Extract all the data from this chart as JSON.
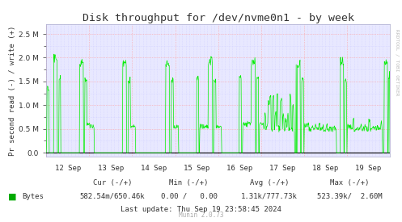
{
  "title": "Disk throughput for /dev/nvme0n1 - by week",
  "ylabel": "Pr second read (-) / write (+)",
  "bg_color": "#FFFFFF",
  "plot_bg_color": "#E8E8FF",
  "grid_color_major": "#FF9999",
  "grid_color_minor": "#CCCCFF",
  "line_color": "#00EE00",
  "zero_line_color": "#000000",
  "yticks": [
    0.0,
    0.5,
    1.0,
    1.5,
    2.0,
    2.5
  ],
  "ylim_min": -80000,
  "ylim_max": 2700000,
  "xticklabels": [
    "12 Sep",
    "13 Sep",
    "14 Sep",
    "15 Sep",
    "16 Sep",
    "17 Sep",
    "18 Sep",
    "19 Sep"
  ],
  "legend_label": "Bytes",
  "legend_color": "#00AA00",
  "cur_label": "Cur (-/+)",
  "cur_val": "582.54m/650.46k",
  "min_label": "Min (-/+)",
  "min_val": "0.00 /   0.00",
  "avg_label": "Avg (-/+)",
  "avg_val": "1.31k/777.73k",
  "max_label": "Max (-/+)",
  "max_val": "523.39k/  2.60M",
  "last_update": "Last update: Thu Sep 19 23:58:45 2024",
  "munin_version": "Munin 2.0.73",
  "rrdtool_label": "RRDTOOL / TOBI OETIKER",
  "arrow_color": "#9999DD",
  "spine_color": "#AAAACC",
  "tick_color": "#333333"
}
